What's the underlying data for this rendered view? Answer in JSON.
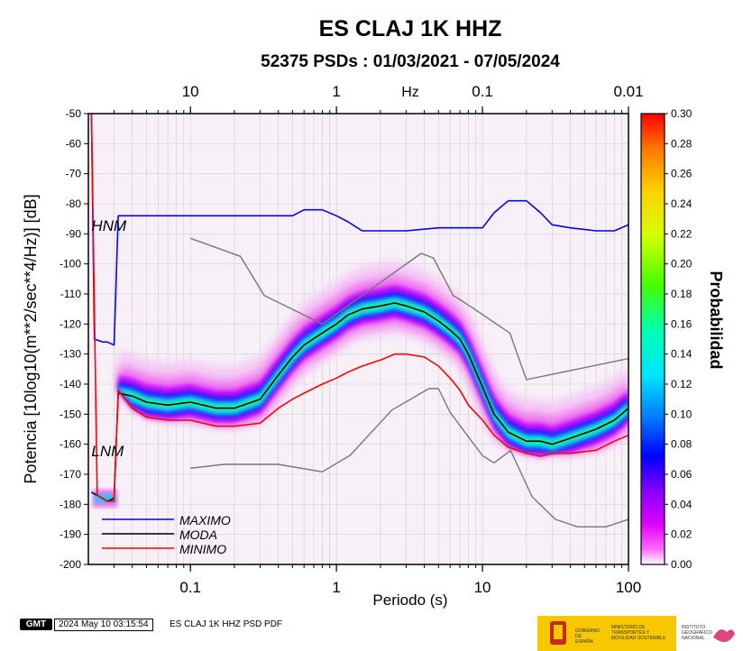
{
  "header": {
    "title": "ES CLAJ 1K HHZ",
    "subtitle": "52375 PSDs : 01/03/2021 - 07/05/2024"
  },
  "chart_data": {
    "type": "heatmap",
    "xlabel": "Periodo (s)",
    "ylabel": "Potencia [10log10(m**2/sec**4/Hz)] [dB]",
    "top_axis_label": "Hz",
    "x_scale": "log",
    "xlim": [
      0.02,
      100
    ],
    "ylim": [
      -200,
      -50
    ],
    "x_ticks": [
      0.1,
      1,
      10,
      100
    ],
    "x_tick_labels": [
      "0.1",
      "1",
      "10",
      "100"
    ],
    "top_ticks_hz": [
      10,
      1,
      0.1,
      0.01
    ],
    "top_tick_labels": [
      "10",
      "1",
      "0.1",
      "0.01"
    ],
    "y_ticks": [
      -50,
      -60,
      -70,
      -80,
      -90,
      -100,
      -110,
      -120,
      -130,
      -140,
      -150,
      -160,
      -170,
      -180,
      -190,
      -200
    ],
    "y_tick_labels": [
      "-50",
      "-60",
      "-70",
      "-80",
      "-90",
      "-100",
      "-110",
      "-120",
      "-130",
      "-140",
      "-150",
      "-160",
      "-170",
      "-180",
      "-190",
      "-200"
    ],
    "grid": true,
    "colorbar": {
      "label": "Probabilidad",
      "range": [
        0,
        0.3
      ],
      "ticks": [
        0.0,
        0.02,
        0.04,
        0.06,
        0.08,
        0.1,
        0.12,
        0.14,
        0.16,
        0.18,
        0.2,
        0.22,
        0.24,
        0.26,
        0.28,
        0.3
      ],
      "tick_labels": [
        "0.00",
        "0.02",
        "0.04",
        "0.06",
        "0.08",
        "0.10",
        "0.12",
        "0.14",
        "0.16",
        "0.18",
        "0.20",
        "0.22",
        "0.24",
        "0.26",
        "0.28",
        "0.30"
      ]
    },
    "annotations": [
      {
        "text": "HNM",
        "x": 0.021,
        "y": -89
      },
      {
        "text": "LNM",
        "x": 0.021,
        "y": -164
      }
    ],
    "legend": {
      "placement": "bottom-left",
      "entries": [
        {
          "name": "MAXIMO",
          "color": "#0000ff"
        },
        {
          "name": "MODA",
          "color": "#000000"
        },
        {
          "name": "MINIMO",
          "color": "#ff0000"
        }
      ]
    },
    "series": [
      {
        "name": "MAXIMO",
        "color": "#0000ff",
        "x": [
          0.021,
          0.022,
          0.025,
          0.027,
          0.03,
          0.032,
          0.04,
          0.05,
          0.07,
          0.1,
          0.15,
          0.2,
          0.3,
          0.4,
          0.5,
          0.6,
          0.8,
          1,
          1.2,
          1.5,
          2,
          3,
          5,
          8,
          10,
          12,
          15,
          20,
          25,
          30,
          40,
          60,
          80,
          100
        ],
        "y": [
          -50,
          -125,
          -126,
          -126,
          -127,
          -84,
          -84,
          -84,
          -84,
          -84,
          -84,
          -84,
          -84,
          -84,
          -84,
          -82,
          -82,
          -84,
          -86,
          -89,
          -89,
          -89,
          -88,
          -88,
          -88,
          -83,
          -79,
          -79,
          -83,
          -87,
          -88,
          -89,
          -89,
          -87
        ]
      },
      {
        "name": "MODA",
        "color": "#000000",
        "x": [
          0.021,
          0.023,
          0.025,
          0.027,
          0.03,
          0.032,
          0.04,
          0.05,
          0.07,
          0.1,
          0.15,
          0.2,
          0.3,
          0.4,
          0.5,
          0.6,
          0.8,
          1,
          1.2,
          1.5,
          2,
          2.5,
          3,
          4,
          5,
          6,
          7,
          8,
          10,
          12,
          15,
          20,
          25,
          30,
          40,
          60,
          80,
          100
        ],
        "y": [
          -176,
          -177,
          -178,
          -179,
          -178,
          -143,
          -144,
          -146,
          -147,
          -146,
          -148,
          -148,
          -145,
          -137,
          -131,
          -127,
          -123,
          -120,
          -117,
          -115,
          -114,
          -113,
          -114,
          -116,
          -119,
          -122,
          -125,
          -130,
          -141,
          -150,
          -156,
          -159,
          -159,
          -160,
          -158,
          -155,
          -152,
          -148
        ]
      },
      {
        "name": "MINIMO",
        "color": "#ff0000",
        "x": [
          0.021,
          0.023,
          0.025,
          0.027,
          0.03,
          0.032,
          0.04,
          0.05,
          0.07,
          0.1,
          0.15,
          0.2,
          0.3,
          0.4,
          0.5,
          0.6,
          0.8,
          1,
          1.2,
          1.5,
          2,
          2.5,
          3,
          4,
          5,
          6,
          7,
          8,
          10,
          12,
          15,
          20,
          25,
          30,
          40,
          60,
          80,
          100
        ],
        "y": [
          -50,
          -177,
          -178,
          -179,
          -179,
          -142,
          -148,
          -151,
          -152,
          -152,
          -154,
          -154,
          -153,
          -148,
          -145,
          -143,
          -140,
          -138,
          -136,
          -134,
          -132,
          -130,
          -130,
          -131,
          -134,
          -138,
          -142,
          -147,
          -152,
          -157,
          -161,
          -163,
          -164,
          -163,
          -163,
          -162,
          -159,
          -157
        ]
      },
      {
        "name": "",
        "color": "#777777",
        "x": [
          0.1,
          0.22,
          0.32,
          0.8,
          3.8,
          4.6,
          6.3,
          7.9,
          15.4,
          20,
          100
        ],
        "y": [
          -91.5,
          -97.5,
          -110.5,
          -120,
          -96.5,
          -98,
          -110.5,
          -113.5,
          -123,
          -138.5,
          -131.5
        ]
      },
      {
        "name": "",
        "color": "#777777",
        "x": [
          0.1,
          0.17,
          0.4,
          0.8,
          1.24,
          2.4,
          4.3,
          5,
          6,
          10,
          12,
          15.6,
          21.9,
          31.6,
          45,
          70,
          100
        ],
        "y": [
          -168,
          -166.7,
          -166.7,
          -169.2,
          -163.7,
          -148.6,
          -141.5,
          -141.5,
          -149.4,
          -163.8,
          -166.2,
          -162.1,
          -177.5,
          -185,
          -187.5,
          -187.5,
          -185
        ]
      }
    ]
  },
  "footer": {
    "badge": "GMT",
    "timestamp": "2024 May 10 03:15:54",
    "caption": "ES CLAJ 1K HHZ PSD PDF",
    "logo_gov_1": "GOBIERNO DE ESPAÑA",
    "logo_gov_2": "MINISTERIO DE TRANSPORTES Y MOVILIDAD SOSTENIBLE",
    "logo_ign": "INSTITUTO GEOGRÁFICO NACIONAL"
  }
}
